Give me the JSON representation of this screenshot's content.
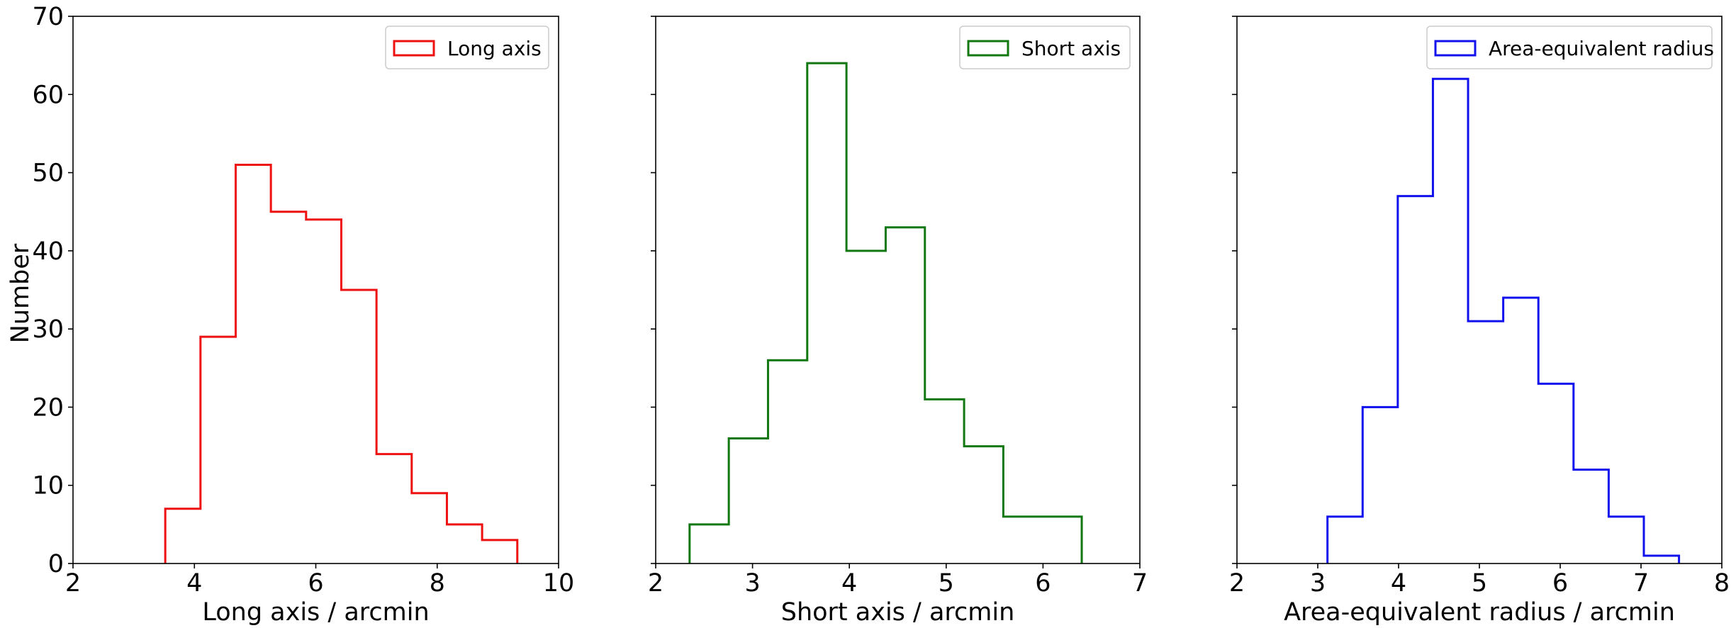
{
  "figure": {
    "shared_ylabel": "Number"
  },
  "chart_data": [
    {
      "type": "histogram",
      "title": "",
      "xlabel": "Long axis / arcmin",
      "ylabel": "Number",
      "xlim": [
        2,
        10
      ],
      "ylim": [
        0,
        70
      ],
      "xticks": [
        2,
        4,
        6,
        8,
        10
      ],
      "yticks": [
        0,
        10,
        20,
        30,
        40,
        50,
        60,
        70
      ],
      "show_ytick_labels": true,
      "legend_position": "top-right",
      "color": "#ee1111",
      "series": [
        {
          "name": "Long axis",
          "bin_edges": [
            3.52,
            4.1,
            4.68,
            5.26,
            5.84,
            6.42,
            7.0,
            7.58,
            8.16,
            8.74,
            9.32
          ],
          "counts": [
            7,
            29,
            51,
            45,
            44,
            35,
            14,
            9,
            5,
            3
          ]
        }
      ]
    },
    {
      "type": "histogram",
      "title": "",
      "xlabel": "Short axis / arcmin",
      "ylabel": "",
      "xlim": [
        2,
        7
      ],
      "ylim": [
        0,
        70
      ],
      "xticks": [
        2,
        3,
        4,
        5,
        6,
        7
      ],
      "yticks": [
        0,
        10,
        20,
        30,
        40,
        50,
        60,
        70
      ],
      "show_ytick_labels": false,
      "legend_position": "top-right",
      "color": "#117711",
      "series": [
        {
          "name": "Short axis",
          "bin_edges": [
            2.35,
            2.755,
            3.16,
            3.565,
            3.97,
            4.375,
            4.78,
            5.185,
            5.59,
            5.995,
            6.4
          ],
          "counts": [
            5,
            16,
            26,
            64,
            40,
            43,
            21,
            15,
            6,
            6
          ]
        }
      ]
    },
    {
      "type": "histogram",
      "title": "",
      "xlabel": "Area-equivalent radius / arcmin",
      "ylabel": "",
      "xlim": [
        2,
        8
      ],
      "ylim": [
        0,
        70
      ],
      "xticks": [
        2,
        3,
        4,
        5,
        6,
        7,
        8
      ],
      "yticks": [
        0,
        10,
        20,
        30,
        40,
        50,
        60,
        70
      ],
      "show_ytick_labels": false,
      "legend_position": "top-right",
      "color": "#1111ee",
      "series": [
        {
          "name": "Area-equivalent radius",
          "bin_edges": [
            3.12,
            3.555,
            3.99,
            4.425,
            4.86,
            5.295,
            5.73,
            6.165,
            6.6,
            7.035,
            7.47
          ],
          "counts": [
            6,
            20,
            47,
            62,
            31,
            34,
            23,
            12,
            6,
            1
          ]
        }
      ]
    }
  ]
}
